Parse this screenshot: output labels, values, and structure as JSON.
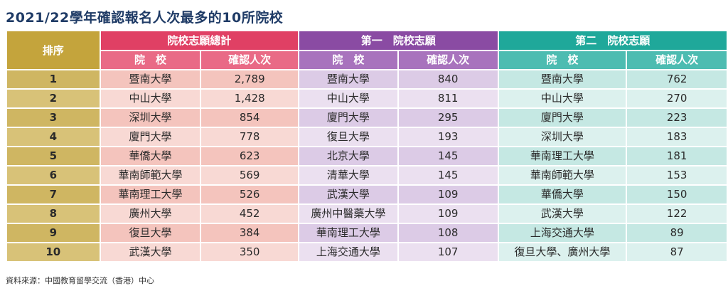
{
  "title": "2021/22學年確認報名人次最多的10所院校",
  "headers": {
    "rank": "排序",
    "group_total": "院校志願總計",
    "group_first": "第一　院校志願",
    "group_second": "第二　院校志願",
    "school": "院　校",
    "count": "確認人次"
  },
  "rows": [
    {
      "rank": "1",
      "total_school": "暨南大學",
      "total_count": "2,789",
      "first_school": "暨南大學",
      "first_count": "840",
      "second_school": "暨南大學",
      "second_count": "762"
    },
    {
      "rank": "2",
      "total_school": "中山大學",
      "total_count": "1,428",
      "first_school": "中山大學",
      "first_count": "811",
      "second_school": "中山大學",
      "second_count": "270"
    },
    {
      "rank": "3",
      "total_school": "深圳大學",
      "total_count": "854",
      "first_school": "廈門大學",
      "first_count": "295",
      "second_school": "廈門大學",
      "second_count": "223"
    },
    {
      "rank": "4",
      "total_school": "廈門大學",
      "total_count": "778",
      "first_school": "復旦大學",
      "first_count": "193",
      "second_school": "深圳大學",
      "second_count": "183"
    },
    {
      "rank": "5",
      "total_school": "華僑大學",
      "total_count": "623",
      "first_school": "北京大學",
      "first_count": "145",
      "second_school": "華南理工大學",
      "second_count": "181"
    },
    {
      "rank": "6",
      "total_school": "華南師範大學",
      "total_count": "569",
      "first_school": "清華大學",
      "first_count": "145",
      "second_school": "華南師範大學",
      "second_count": "153"
    },
    {
      "rank": "7",
      "total_school": "華南理工大學",
      "total_count": "526",
      "first_school": "武漢大學",
      "first_count": "109",
      "second_school": "華僑大學",
      "second_count": "150"
    },
    {
      "rank": "8",
      "total_school": "廣州大學",
      "total_count": "452",
      "first_school": "廣州中醫藥大學",
      "first_count": "109",
      "second_school": "武漢大學",
      "second_count": "122"
    },
    {
      "rank": "9",
      "total_school": "復旦大學",
      "total_count": "384",
      "first_school": "華南理工大學",
      "first_count": "108",
      "second_school": "上海交通大學",
      "second_count": "89"
    },
    {
      "rank": "10",
      "total_school": "武漢大學",
      "total_count": "350",
      "first_school": "上海交通大學",
      "first_count": "107",
      "second_school": "復旦大學、廣州大學",
      "second_count": "87"
    }
  ],
  "source": "資料來源：中國教育留學交流（香港）中心",
  "colors": {
    "title": "#1f3b66",
    "rank_header": "#c4a43c",
    "total_header": "#e04064",
    "first_header": "#8a4ba3",
    "second_header": "#1fa89a"
  }
}
